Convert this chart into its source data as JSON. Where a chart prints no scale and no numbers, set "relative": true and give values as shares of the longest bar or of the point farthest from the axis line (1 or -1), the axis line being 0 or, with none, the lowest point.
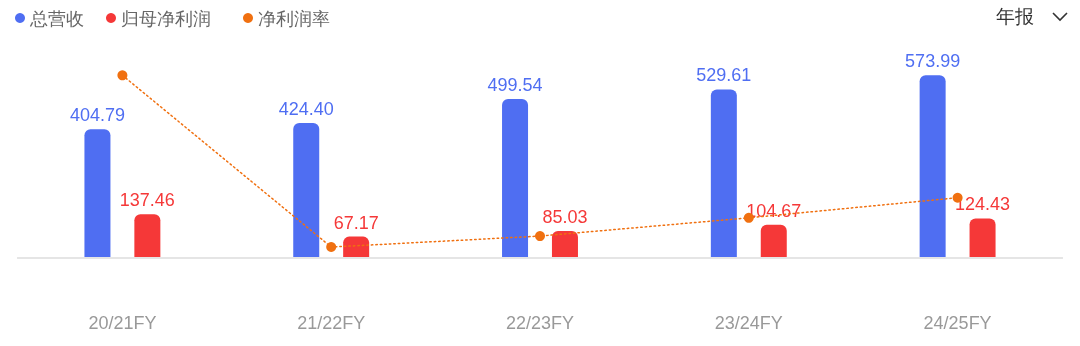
{
  "chart_data": [
    {
      "type": "bar",
      "categories": [
        "20/21FY",
        "21/22FY",
        "22/23FY",
        "23/24FY",
        "24/25FY"
      ],
      "series": [
        {
          "name": "总营收",
          "color": "#4f6ef2",
          "values": [
            404.79,
            424.4,
            499.54,
            529.61,
            573.99
          ],
          "value_labels": [
            "404.79",
            "424.40",
            "499.54",
            "529.61",
            "573.99"
          ]
        },
        {
          "name": "归母净利润",
          "color": "#f53838",
          "values": [
            137.46,
            67.17,
            85.03,
            104.67,
            124.43
          ],
          "value_labels": [
            "137.46",
            "67.17",
            "85.03",
            "104.67",
            "124.43"
          ]
        }
      ],
      "legend": "top left",
      "annotations": [
        "年报"
      ]
    },
    {
      "type": "line",
      "relative": true,
      "categories": [
        null,
        null,
        null,
        null,
        null
      ],
      "series": [
        {
          "name": "净利润率",
          "color": "#f07010",
          "values": [
            1,
            0.06,
            0.12,
            0.22,
            0.33
          ]
        }
      ],
      "legend": "top left",
      "marker": "circle",
      "line_style": "dotted"
    }
  ]
}
